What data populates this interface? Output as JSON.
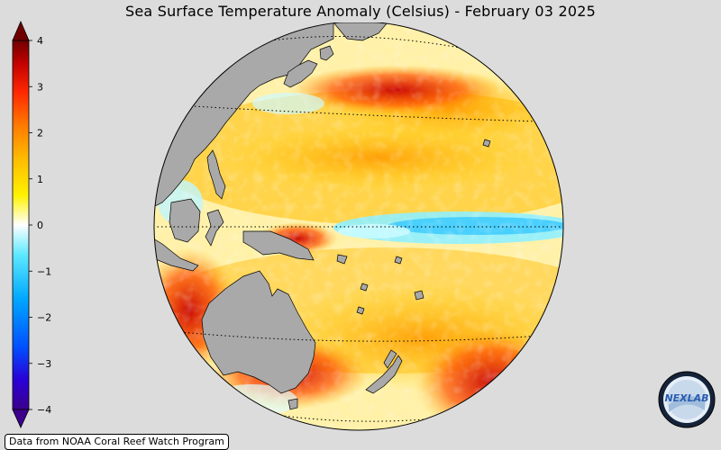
{
  "title": "Sea Surface Temperature Anomaly (Celsius) - February 03 2025",
  "credit": "Data from NOAA Coral Reef Watch Program",
  "logo_text": "NEXLAB",
  "colorbar": {
    "min": -4,
    "max": 4,
    "ticks": [
      "4",
      "3",
      "2",
      "1",
      "0",
      "−1",
      "−2",
      "−3",
      "−4"
    ],
    "colors": [
      "#3b008c",
      "#2a00d6",
      "#0050ff",
      "#00a8ff",
      "#5ee9ff",
      "#ffffff",
      "#fff200",
      "#ffbb00",
      "#ff7a00",
      "#ff2800",
      "#c00000",
      "#700000"
    ]
  },
  "map": {
    "projection": "orthographic",
    "ocean_neutral": "#ffffff",
    "land_color": "#a9a9a9",
    "graticule": "dotted"
  }
}
